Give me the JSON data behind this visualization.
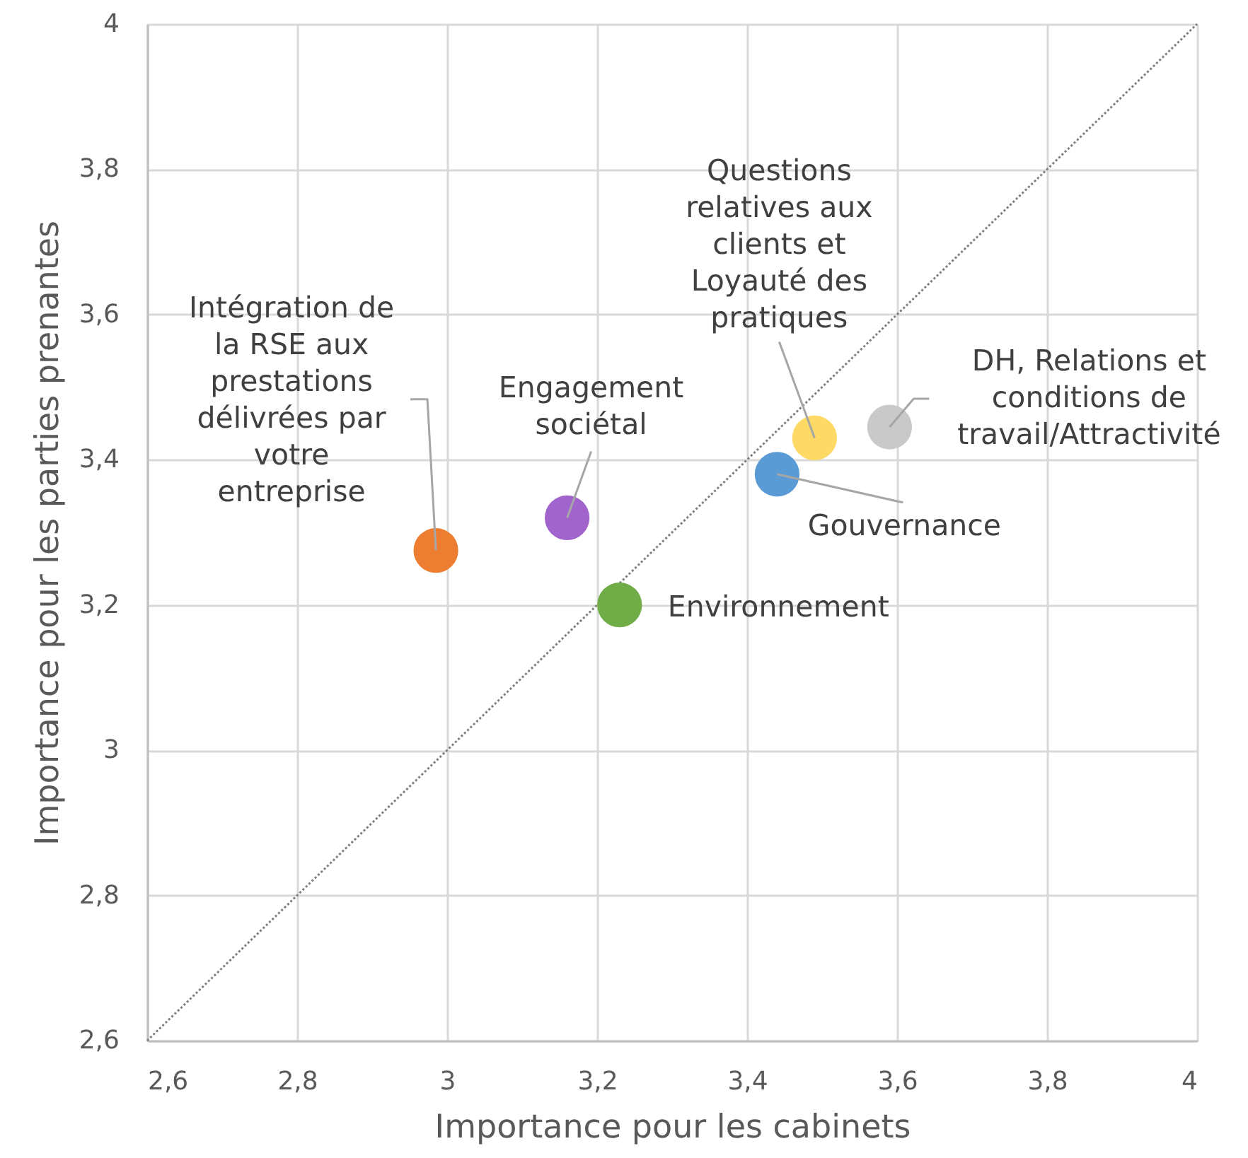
{
  "chart_data": {
    "type": "scatter",
    "xlabel": "Importance pour les cabinets",
    "ylabel": "Importance pour les parties prenantes",
    "xlim": [
      2.6,
      4
    ],
    "ylim": [
      2.6,
      4
    ],
    "xticks": [
      {
        "value": 2.6,
        "label": "2,6"
      },
      {
        "value": 2.8,
        "label": "2,8"
      },
      3,
      {
        "value": 3.2,
        "label": "3,2"
      },
      {
        "value": 3.4,
        "label": "3,4"
      },
      {
        "value": 3.6,
        "label": "3,6"
      },
      {
        "value": 3.8,
        "label": "3,8"
      },
      4
    ],
    "yticks": [
      {
        "value": 2.6,
        "label": "2,6"
      },
      {
        "value": 2.8,
        "label": "2,8"
      },
      3,
      {
        "value": 3.2,
        "label": "3,2"
      },
      {
        "value": 3.4,
        "label": "3,4"
      },
      {
        "value": 3.6,
        "label": "3,6"
      },
      {
        "value": 3.8,
        "label": "3,8"
      },
      4
    ],
    "grid": true,
    "marker": "circle",
    "series": [
      {
        "name": "Intégration de la RSE aux prestations délivrées par votre entreprise",
        "color": "#ed7d31",
        "x": [
          2.985
        ],
        "values": [
          3.275
        ]
      },
      {
        "name": "Engagement sociétal",
        "color": "#a064cc",
        "x": [
          3.16
        ],
        "values": [
          3.32
        ]
      },
      {
        "name": "Environnement",
        "color": "#70ad47",
        "x": [
          3.23
        ],
        "values": [
          3.2
        ]
      },
      {
        "name": "Gouvernance",
        "color": "#5b9bd5",
        "x": [
          3.44
        ],
        "values": [
          3.38
        ]
      },
      {
        "name": "Questions relatives aux clients et Loyauté des pratiques",
        "color": "#ffd966",
        "x": [
          3.49
        ],
        "values": [
          3.43
        ]
      },
      {
        "name": "DH, Relations et conditions de travail/Attractivité",
        "color": "#c9c9c9",
        "x": [
          3.59
        ],
        "values": [
          3.445
        ]
      },
      {
        "type": "line",
        "color": "#7f7f7f",
        "line_style": "dotted",
        "marker": "none",
        "x": [
          2.6,
          4
        ],
        "values": [
          2.6,
          4
        ]
      }
    ]
  }
}
